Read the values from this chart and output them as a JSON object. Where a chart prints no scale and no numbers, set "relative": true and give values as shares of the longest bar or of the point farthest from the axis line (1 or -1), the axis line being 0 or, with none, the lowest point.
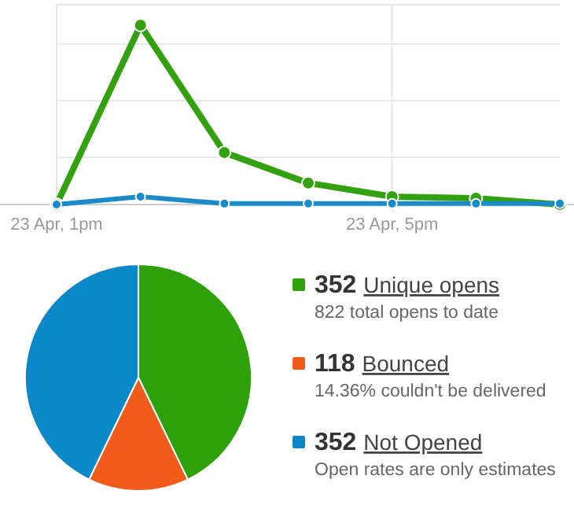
{
  "chart_data": [
    {
      "type": "line",
      "relative": true,
      "categories": [
        "23 Apr, 1pm",
        null,
        null,
        null,
        "23 Apr, 5pm",
        null,
        null
      ],
      "grid": true,
      "marker": "circle",
      "series": [
        {
          "color": "#33a00f",
          "values": [
            0,
            1,
            0.29,
            0.12,
            0.044,
            0.035,
            0
          ]
        },
        {
          "color": "#1a8bc8",
          "values": [
            0,
            0.044,
            0.005,
            0.005,
            0.005,
            0.005,
            0.005
          ]
        }
      ]
    },
    {
      "type": "pie",
      "categories": [
        "352 Unique opens",
        "118 Bounced",
        "352 Not Opened"
      ],
      "values": [
        352,
        118,
        352
      ],
      "colors": [
        "#2ea00a",
        "#f05a1a",
        "#0a88c8"
      ],
      "legend": "right",
      "annotations": [
        "822 total opens to date",
        "14.36% couldn't be delivered",
        "Open rates are only estimates"
      ]
    }
  ]
}
